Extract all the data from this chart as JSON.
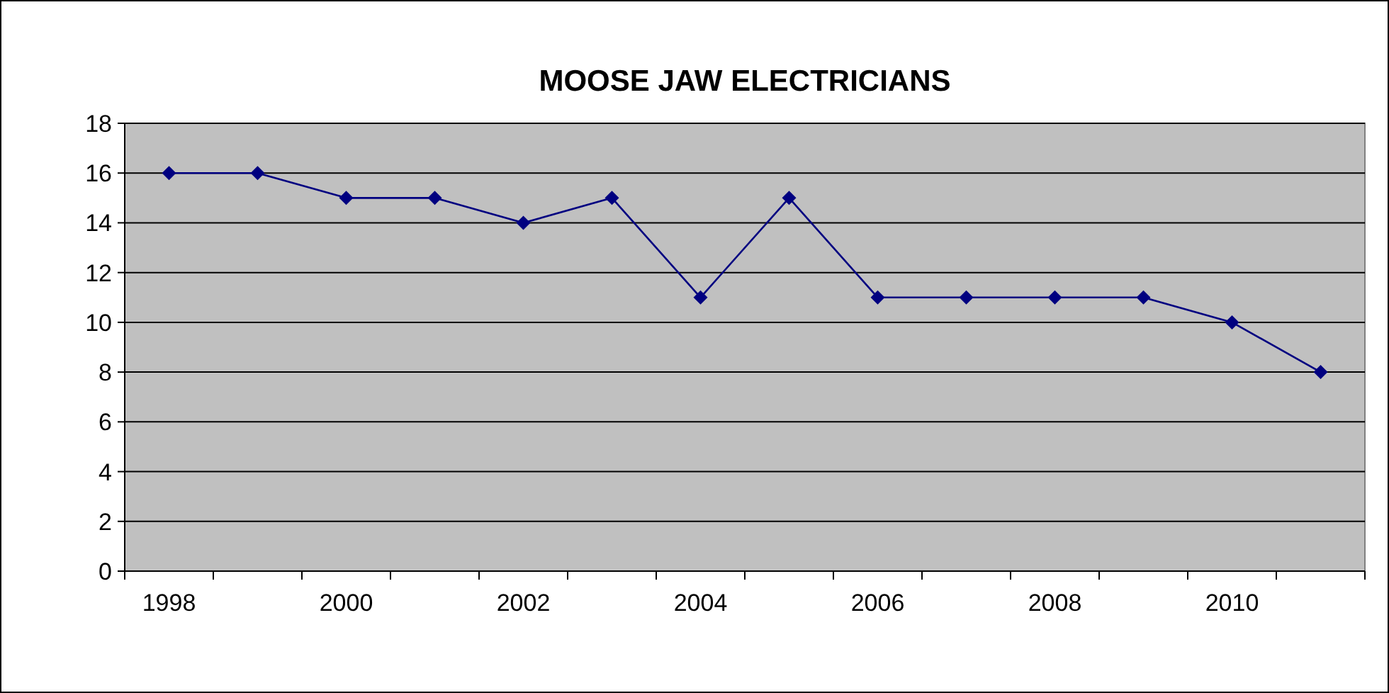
{
  "chart_data": {
    "type": "line",
    "title": "MOOSE JAW ELECTRICIANS",
    "categories": [
      "1998",
      null,
      "2000",
      null,
      "2002",
      null,
      "2004",
      null,
      "2006",
      null,
      "2008",
      null,
      "2010",
      null
    ],
    "series": [
      {
        "color": "#000080",
        "values": [
          16,
          16,
          15,
          15,
          14,
          15,
          11,
          15,
          11,
          11,
          11,
          11,
          10,
          8
        ]
      }
    ],
    "ylim": [
      0,
      18
    ],
    "yticks": [
      0,
      2,
      4,
      6,
      8,
      10,
      12,
      14,
      16,
      18
    ],
    "grid": "y",
    "marker": "diamond",
    "line_style": "solid"
  }
}
